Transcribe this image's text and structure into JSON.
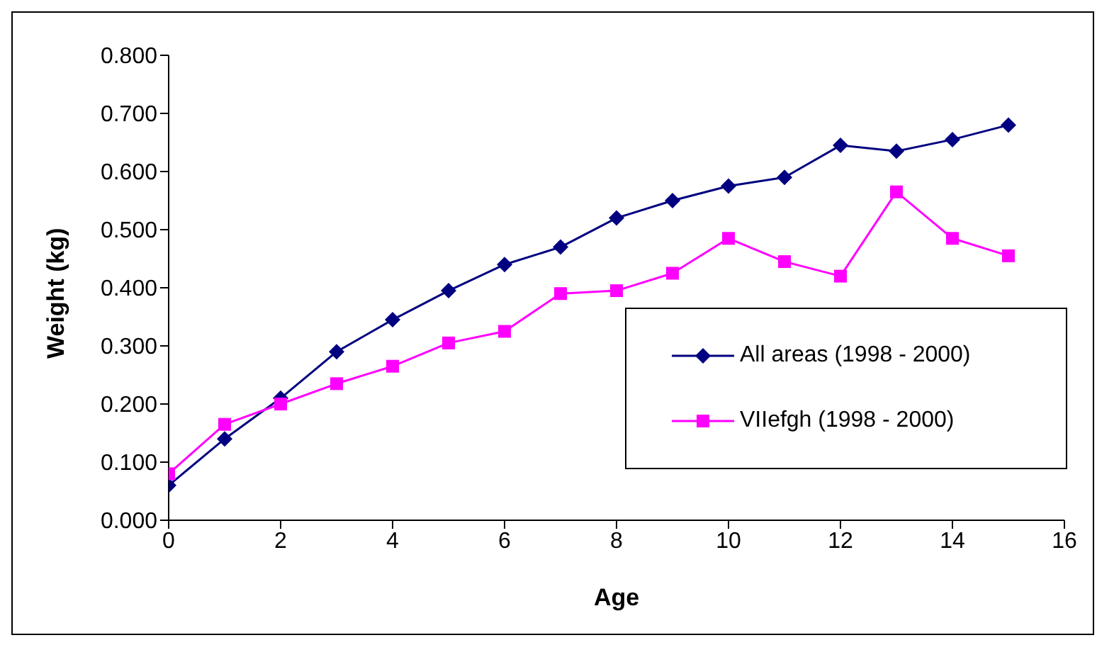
{
  "chart_data": {
    "type": "line",
    "xlabel": "Age",
    "ylabel": "Weight (kg)",
    "x": [
      0,
      1,
      2,
      3,
      4,
      5,
      6,
      7,
      8,
      9,
      10,
      11,
      12,
      13,
      14,
      15
    ],
    "series": [
      {
        "name": "All areas (1998 - 2000)",
        "color": "#000080",
        "marker": "diamond",
        "values": [
          0.06,
          0.14,
          0.21,
          0.29,
          0.345,
          0.395,
          0.44,
          0.47,
          0.52,
          0.55,
          0.575,
          0.59,
          0.645,
          0.635,
          0.655,
          0.68
        ]
      },
      {
        "name": "VIIefgh (1998 - 2000)",
        "color": "#ff00ff",
        "marker": "square",
        "values": [
          0.08,
          0.165,
          0.2,
          0.235,
          0.265,
          0.305,
          0.325,
          0.39,
          0.395,
          0.425,
          0.485,
          0.445,
          0.42,
          0.565,
          0.485,
          0.455
        ]
      }
    ],
    "xlim": [
      0,
      16
    ],
    "xticks": [
      0,
      2,
      4,
      6,
      8,
      10,
      12,
      14,
      16
    ],
    "ylim": [
      0,
      0.8
    ],
    "yticks": [
      {
        "value": 0,
        "label": "0.000"
      },
      {
        "value": 0.1,
        "label": "0.100"
      },
      {
        "value": 0.2,
        "label": "0.200"
      },
      {
        "value": 0.3,
        "label": "0.300"
      },
      {
        "value": 0.4,
        "label": "0.400"
      },
      {
        "value": 0.5,
        "label": "0.500"
      },
      {
        "value": 0.6,
        "label": "0.600"
      },
      {
        "value": 0.7,
        "label": "0.700"
      },
      {
        "value": 0.8,
        "label": "0.800"
      }
    ],
    "grid": false,
    "legend": "right",
    "line_style": "solid"
  }
}
